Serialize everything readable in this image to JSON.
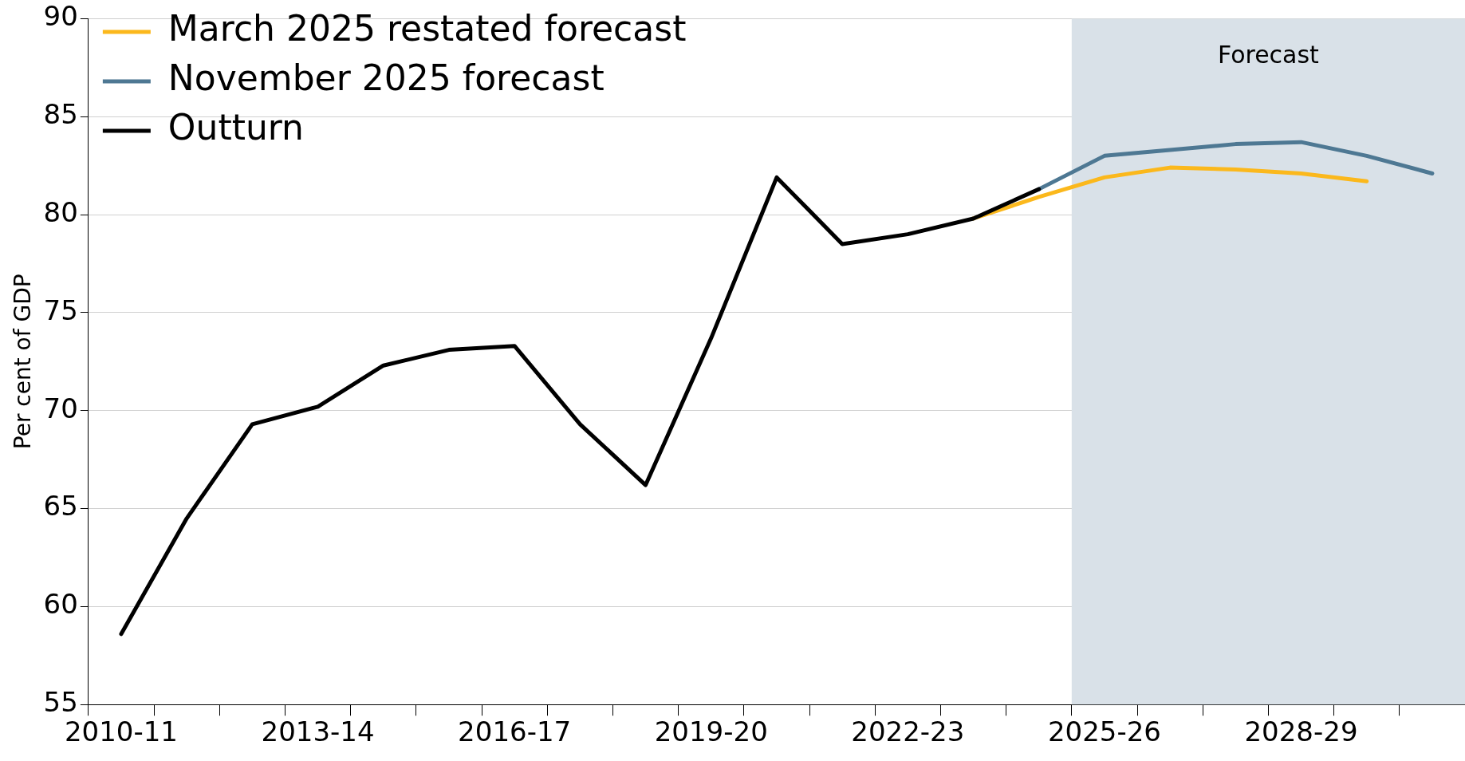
{
  "chart_data": {
    "type": "line",
    "ylabel": "Per cent of GDP",
    "categories": [
      "2010-11",
      null,
      null,
      "2013-14",
      null,
      null,
      "2016-17",
      null,
      null,
      "2019-20",
      null,
      null,
      "2022-23",
      null,
      null,
      "2025-26",
      null,
      null,
      "2028-29",
      null,
      null
    ],
    "series": [
      {
        "name": "March 2025 restated forecast",
        "color": "#fbb81c",
        "values": [
          null,
          null,
          null,
          null,
          null,
          null,
          null,
          null,
          null,
          null,
          null,
          null,
          null,
          79.8,
          80.9,
          81.9,
          82.4,
          82.3,
          82.1,
          81.7,
          null
        ]
      },
      {
        "name": "November 2025 forecast",
        "color": "#4e7893",
        "values": [
          null,
          null,
          null,
          null,
          null,
          null,
          null,
          null,
          null,
          null,
          null,
          null,
          null,
          null,
          81.3,
          83.0,
          83.3,
          83.6,
          83.7,
          83.0,
          82.1
        ]
      },
      {
        "name": "Outturn",
        "color": "#000000",
        "values": [
          58.6,
          64.5,
          69.3,
          70.2,
          72.3,
          73.1,
          73.3,
          69.3,
          66.2,
          73.7,
          81.9,
          78.5,
          79.0,
          79.8,
          81.3,
          null,
          null,
          null,
          null,
          null,
          null
        ]
      }
    ],
    "ylim": [
      55,
      90
    ],
    "yticks": [
      55,
      60,
      65,
      70,
      75,
      80,
      85,
      90
    ],
    "bands": [
      {
        "axis": "x",
        "from": "2025-26",
        "to": "2030-31",
        "color": "#d9e1e8"
      }
    ],
    "annotations": [
      "Forecast"
    ],
    "grid": "y",
    "legend": "top left",
    "marker": "none",
    "line_style": "solid"
  }
}
